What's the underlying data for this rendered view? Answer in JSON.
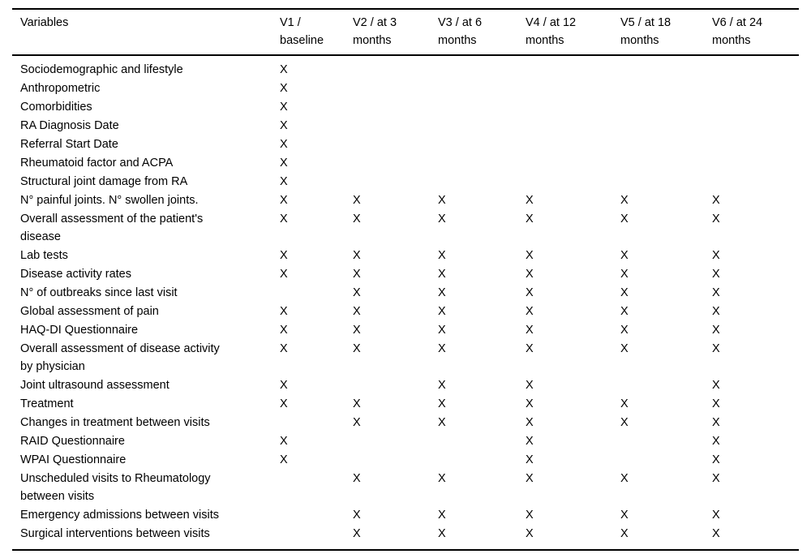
{
  "page": {
    "background_color": "#ffffff",
    "text_color": "#000000"
  },
  "table": {
    "mark_symbol": "X",
    "columns": [
      "Variables",
      "V1 /\nbaseline",
      "V2 / at 3\nmonths",
      "V3 / at 6\nmonths",
      "V4 / at 12\nmonths",
      "V5 / at 18\nmonths",
      "V6 / at 24\nmonths"
    ],
    "rows": [
      {
        "variable": "Sociodemographic and lifestyle",
        "marks": [
          "X",
          "",
          "",
          "",
          "",
          ""
        ]
      },
      {
        "variable": "Anthropometric",
        "marks": [
          "X",
          "",
          "",
          "",
          "",
          ""
        ]
      },
      {
        "variable": "Comorbidities",
        "marks": [
          "X",
          "",
          "",
          "",
          "",
          ""
        ]
      },
      {
        "variable": "RA Diagnosis Date",
        "marks": [
          "X",
          "",
          "",
          "",
          "",
          ""
        ]
      },
      {
        "variable": "Referral Start Date",
        "marks": [
          "X",
          "",
          "",
          "",
          "",
          ""
        ]
      },
      {
        "variable": "Rheumatoid factor and ACPA",
        "marks": [
          "X",
          "",
          "",
          "",
          "",
          ""
        ]
      },
      {
        "variable": "Structural joint damage from RA",
        "marks": [
          "X",
          "",
          "",
          "",
          "",
          ""
        ]
      },
      {
        "variable": "N° painful joints. N° swollen joints.",
        "marks": [
          "X",
          "X",
          "X",
          "X",
          "X",
          "X"
        ]
      },
      {
        "variable": "Overall assessment of the patient's\ndisease",
        "marks": [
          "X",
          "X",
          "X",
          "X",
          "X",
          "X"
        ]
      },
      {
        "variable": "Lab tests",
        "marks": [
          "X",
          "X",
          "X",
          "X",
          "X",
          "X"
        ]
      },
      {
        "variable": "Disease activity rates",
        "marks": [
          "X",
          "X",
          "X",
          "X",
          "X",
          "X"
        ]
      },
      {
        "variable": "N° of outbreaks since last visit",
        "marks": [
          "",
          "X",
          "X",
          "X",
          "X",
          "X"
        ]
      },
      {
        "variable": "Global assessment of pain",
        "marks": [
          "X",
          "X",
          "X",
          "X",
          "X",
          "X"
        ]
      },
      {
        "variable": "HAQ-DI Questionnaire",
        "marks": [
          "X",
          "X",
          "X",
          "X",
          "X",
          "X"
        ]
      },
      {
        "variable": "Overall assessment of disease activity\nby physician",
        "marks": [
          "X",
          "X",
          "X",
          "X",
          "X",
          "X"
        ]
      },
      {
        "variable": "Joint ultrasound assessment",
        "marks": [
          "X",
          "",
          "X",
          "X",
          "",
          "X"
        ]
      },
      {
        "variable": "Treatment",
        "marks": [
          "X",
          "X",
          "X",
          "X",
          "X",
          "X"
        ]
      },
      {
        "variable": "Changes in treatment between visits",
        "marks": [
          "",
          "X",
          "X",
          "X",
          "X",
          "X"
        ]
      },
      {
        "variable": "RAID Questionnaire",
        "marks": [
          "X",
          "",
          "",
          "X",
          "",
          "X"
        ]
      },
      {
        "variable": "WPAI Questionnaire",
        "marks": [
          "X",
          "",
          "",
          "X",
          "",
          "X"
        ]
      },
      {
        "variable": "Unscheduled visits to Rheumatology\nbetween visits",
        "marks": [
          "",
          "X",
          "X",
          "X",
          "X",
          "X"
        ]
      },
      {
        "variable": "Emergency admissions between visits",
        "marks": [
          "",
          "X",
          "X",
          "X",
          "X",
          "X"
        ]
      },
      {
        "variable": "Surgical interventions between visits",
        "marks": [
          "",
          "X",
          "X",
          "X",
          "X",
          "X"
        ]
      }
    ]
  }
}
